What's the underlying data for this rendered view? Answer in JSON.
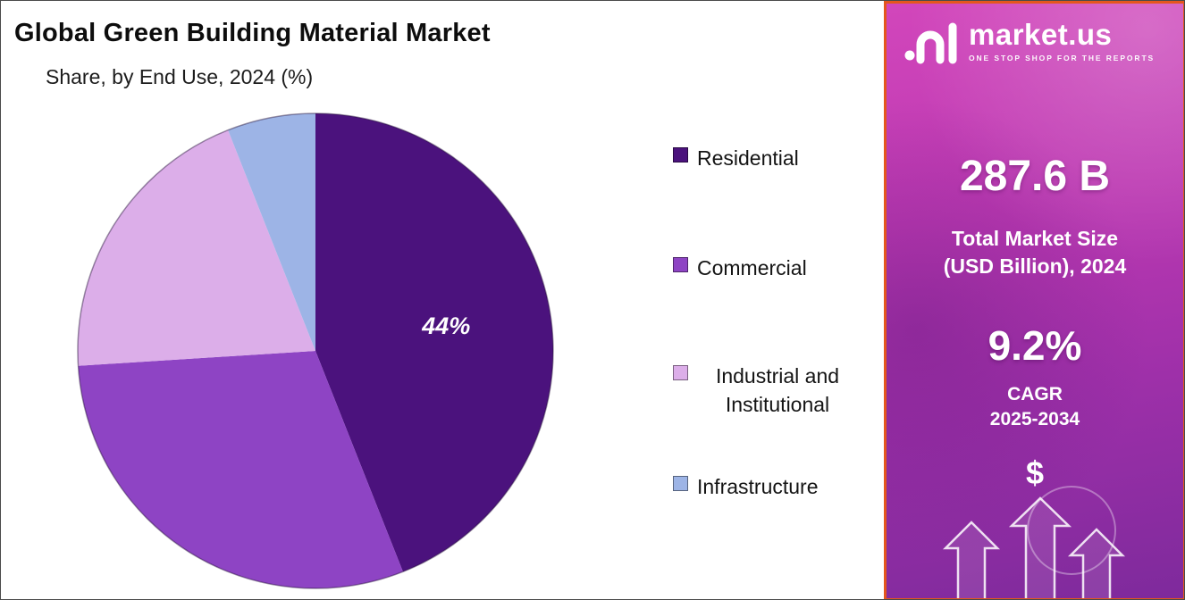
{
  "chart_data": {
    "type": "pie",
    "title": "Global Green Building Material Market",
    "subtitle": "Share, by End Use, 2024 (%)",
    "start_angle_deg": 0,
    "direction": "clockwise",
    "legend_position": "right",
    "slices": [
      {
        "label": "Residential",
        "value": 44,
        "color": "#4b127d",
        "data_label": "44%"
      },
      {
        "label": "Commercial",
        "value": 30,
        "color": "#8e44c4",
        "data_label": ""
      },
      {
        "label": "Industrial and Institutional",
        "value": 20,
        "color": "#dcaee9",
        "data_label": ""
      },
      {
        "label": "Infrastructure",
        "value": 6,
        "color": "#9db4e6",
        "data_label": ""
      }
    ]
  },
  "sidebar": {
    "brand": {
      "name": "market.us",
      "tagline": "ONE STOP SHOP FOR THE REPORTS"
    },
    "market_size_value": "287.6 B",
    "market_size_label_line1": "Total Market Size",
    "market_size_label_line2": "(USD Billion), 2024",
    "cagr_value": "9.2%",
    "cagr_label_line1": "CAGR",
    "cagr_label_line2": "2025-2034",
    "dollar_symbol": "$"
  },
  "colors": {
    "sidebar_border": "#e4571e",
    "sidebar_gradient_top": "#d246bb",
    "sidebar_gradient_bottom": "#7e2a9c",
    "title_text": "#0d0d0d"
  }
}
